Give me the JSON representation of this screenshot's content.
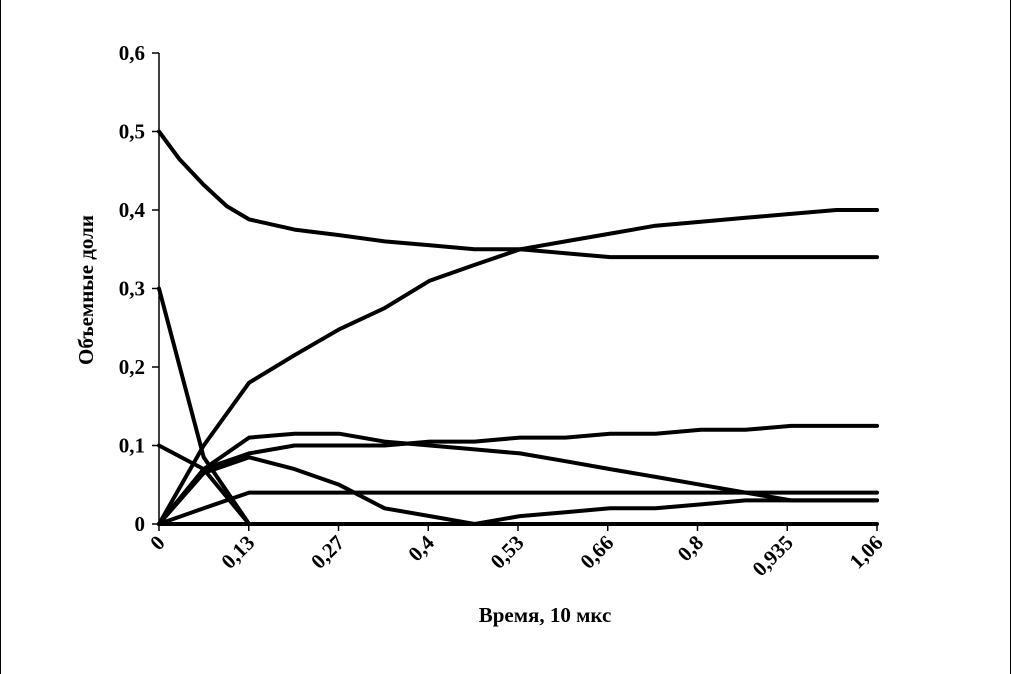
{
  "chart_data": {
    "type": "line",
    "title": "",
    "xlabel": "Время, 10 мкс",
    "ylabel": "Объемные  доли",
    "x_ticks": [
      "0",
      "0,13",
      "0,27",
      "0,4",
      "0,53",
      "0,66",
      "0,8",
      "0,935",
      "1,06"
    ],
    "y_ticks": [
      "0",
      "0,1",
      "0,2",
      "0,3",
      "0,4",
      "0,5",
      "0,6"
    ],
    "xlim": [
      0,
      1.06
    ],
    "ylim": [
      0,
      0.6
    ],
    "grid": false,
    "legend": "none",
    "line_color": "#000000",
    "series": [
      {
        "x": [
          0,
          0.03,
          0.066,
          0.1,
          0.133,
          0.2,
          0.266,
          0.333,
          0.4,
          0.466,
          0.533,
          0.6,
          0.666,
          0.733,
          0.8,
          0.866,
          0.933,
          1.0,
          1.06
        ],
        "values": [
          0.5,
          0.465,
          0.432,
          0.405,
          0.388,
          0.375,
          0.368,
          0.36,
          0.355,
          0.35,
          0.35,
          0.345,
          0.34,
          0.34,
          0.34,
          0.34,
          0.34,
          0.34,
          0.34
        ]
      },
      {
        "x": [
          0,
          0.066,
          0.133,
          0.2,
          0.266,
          0.333,
          0.4,
          0.466,
          0.533,
          0.6,
          0.666,
          0.733,
          0.8,
          0.866,
          0.933,
          1.0,
          1.06
        ],
        "values": [
          0,
          0.1,
          0.18,
          0.215,
          0.248,
          0.275,
          0.31,
          0.33,
          0.35,
          0.36,
          0.37,
          0.38,
          0.385,
          0.39,
          0.395,
          0.4,
          0.4
        ]
      },
      {
        "x": [
          0,
          0.066,
          0.133
        ],
        "values": [
          0.3,
          0.085,
          0
        ]
      },
      {
        "x": [
          0,
          0.066,
          0.133,
          0.2,
          0.266,
          0.333,
          0.4,
          0.466,
          0.533,
          0.6,
          0.666,
          0.733,
          0.8,
          0.866,
          0.933,
          1.0,
          1.06
        ],
        "values": [
          0,
          0.07,
          0.11,
          0.115,
          0.115,
          0.105,
          0.1,
          0.095,
          0.09,
          0.08,
          0.07,
          0.06,
          0.05,
          0.04,
          0.03,
          0.03,
          0.03
        ]
      },
      {
        "x": [
          0,
          0.066,
          0.133,
          0.2,
          0.266,
          0.333,
          0.4,
          0.466,
          0.533,
          0.6,
          0.666,
          0.733,
          0.8,
          0.866,
          0.933,
          1.0,
          1.06
        ],
        "values": [
          0,
          0.07,
          0.09,
          0.1,
          0.1,
          0.1,
          0.105,
          0.105,
          0.11,
          0.11,
          0.115,
          0.115,
          0.12,
          0.12,
          0.125,
          0.125,
          0.125
        ]
      },
      {
        "x": [
          0,
          0.066,
          0.133
        ],
        "values": [
          0.1,
          0.07,
          0
        ]
      },
      {
        "x": [
          0,
          0.066,
          0.133,
          0.2,
          0.266,
          0.333,
          0.4,
          0.466,
          0.533,
          0.6,
          0.666,
          0.733,
          0.8,
          0.866,
          0.933,
          1.0,
          1.06
        ],
        "values": [
          0,
          0.065,
          0.085,
          0.07,
          0.05,
          0.02,
          0.01,
          0,
          0.01,
          0.015,
          0.02,
          0.02,
          0.025,
          0.03,
          0.03,
          0.03,
          0.03
        ]
      },
      {
        "x": [
          0,
          0.066,
          0.133,
          0.2,
          0.266,
          0.333,
          0.4,
          0.466,
          0.533,
          0.6,
          0.666,
          0.733,
          0.8,
          0.866,
          0.933,
          1.0,
          1.06
        ],
        "values": [
          0,
          0.02,
          0.04,
          0.04,
          0.04,
          0.04,
          0.04,
          0.04,
          0.04,
          0.04,
          0.04,
          0.04,
          0.04,
          0.04,
          0.04,
          0.04,
          0.04
        ]
      },
      {
        "x": [
          0,
          1.06
        ],
        "values": [
          0,
          0
        ]
      }
    ]
  }
}
